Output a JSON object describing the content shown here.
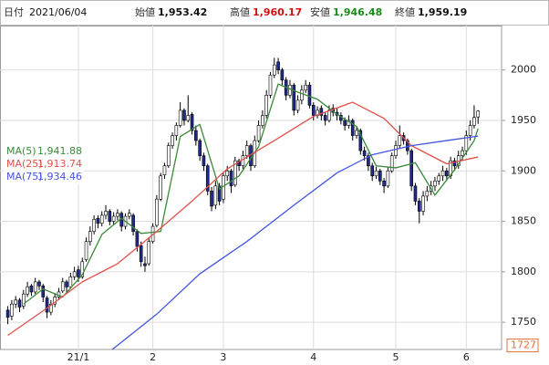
{
  "header": {
    "date_label": "日付",
    "date": "2021/06/04",
    "open_label": "始値",
    "open": "1,953.42",
    "high_label": "高値",
    "high": "1,960.17",
    "low_label": "安値",
    "low": "1,946.48",
    "close_label": "終値",
    "close": "1,959.19"
  },
  "chart_data": {
    "type": "candlestick",
    "up_color": "#ffffff",
    "down_color": "#1f2a8c",
    "outline_color": "#000000",
    "xlim": [
      -2,
      126
    ],
    "ylim": [
      1723,
      2044
    ],
    "yticks": [
      1750,
      1800,
      1850,
      1900,
      1950,
      2000
    ],
    "axis_min_label": 1727,
    "grid": true,
    "xticks": [
      {
        "value": 18,
        "label": "21/1"
      },
      {
        "value": 37,
        "label": "2"
      },
      {
        "value": 55,
        "label": "3"
      },
      {
        "value": 78,
        "label": "4"
      },
      {
        "value": 99,
        "label": "5"
      },
      {
        "value": 117,
        "label": "6"
      }
    ],
    "candles": [
      [
        1762,
        1766,
        1748,
        1755
      ],
      [
        1756,
        1772,
        1752,
        1768
      ],
      [
        1768,
        1776,
        1764,
        1772
      ],
      [
        1772,
        1774,
        1760,
        1765
      ],
      [
        1766,
        1782,
        1763,
        1778
      ],
      [
        1778,
        1790,
        1775,
        1785
      ],
      [
        1786,
        1788,
        1776,
        1780
      ],
      [
        1780,
        1794,
        1778,
        1790
      ],
      [
        1790,
        1792,
        1782,
        1786
      ],
      [
        1786,
        1788,
        1770,
        1775
      ],
      [
        1774,
        1776,
        1754,
        1760
      ],
      [
        1760,
        1772,
        1757,
        1768
      ],
      [
        1768,
        1779,
        1765,
        1775
      ],
      [
        1775,
        1784,
        1772,
        1780
      ],
      [
        1781,
        1794,
        1779,
        1790
      ],
      [
        1790,
        1792,
        1780,
        1785
      ],
      [
        1785,
        1799,
        1783,
        1795
      ],
      [
        1795,
        1805,
        1792,
        1800
      ],
      [
        1802,
        1806,
        1790,
        1795
      ],
      [
        1795,
        1814,
        1793,
        1810
      ],
      [
        1812,
        1834,
        1810,
        1830
      ],
      [
        1830,
        1845,
        1826,
        1840
      ],
      [
        1840,
        1856,
        1837,
        1852
      ],
      [
        1853,
        1856,
        1843,
        1848
      ],
      [
        1848,
        1860,
        1845,
        1856
      ],
      [
        1856,
        1866,
        1852,
        1860
      ],
      [
        1860,
        1862,
        1846,
        1850
      ],
      [
        1850,
        1859,
        1847,
        1855
      ],
      [
        1855,
        1862,
        1851,
        1858
      ],
      [
        1858,
        1860,
        1840,
        1845
      ],
      [
        1845,
        1858,
        1842,
        1855
      ],
      [
        1855,
        1862,
        1852,
        1858
      ],
      [
        1856,
        1858,
        1836,
        1840
      ],
      [
        1840,
        1842,
        1820,
        1825
      ],
      [
        1826,
        1830,
        1805,
        1810
      ],
      [
        1808,
        1815,
        1800,
        1806
      ],
      [
        1808,
        1834,
        1806,
        1830
      ],
      [
        1830,
        1848,
        1828,
        1845
      ],
      [
        1846,
        1876,
        1844,
        1872
      ],
      [
        1872,
        1898,
        1870,
        1895
      ],
      [
        1896,
        1908,
        1892,
        1905
      ],
      [
        1905,
        1928,
        1903,
        1925
      ],
      [
        1925,
        1938,
        1922,
        1935
      ],
      [
        1935,
        1948,
        1930,
        1945
      ],
      [
        1945,
        1968,
        1943,
        1960
      ],
      [
        1960,
        1962,
        1945,
        1950
      ],
      [
        1950,
        1975,
        1948,
        1955
      ],
      [
        1956,
        1958,
        1936,
        1940
      ],
      [
        1940,
        1945,
        1925,
        1930
      ],
      [
        1930,
        1932,
        1910,
        1915
      ],
      [
        1915,
        1918,
        1900,
        1905
      ],
      [
        1905,
        1907,
        1876,
        1880
      ],
      [
        1880,
        1884,
        1860,
        1865
      ],
      [
        1866,
        1890,
        1862,
        1885
      ],
      [
        1885,
        1888,
        1866,
        1870
      ],
      [
        1872,
        1898,
        1868,
        1895
      ],
      [
        1895,
        1905,
        1890,
        1900
      ],
      [
        1900,
        1902,
        1878,
        1885
      ],
      [
        1886,
        1914,
        1884,
        1910
      ],
      [
        1910,
        1912,
        1900,
        1905
      ],
      [
        1905,
        1920,
        1902,
        1915
      ],
      [
        1915,
        1930,
        1912,
        1925
      ],
      [
        1925,
        1927,
        1900,
        1905
      ],
      [
        1905,
        1935,
        1903,
        1930
      ],
      [
        1930,
        1950,
        1928,
        1945
      ],
      [
        1945,
        1960,
        1942,
        1955
      ],
      [
        1955,
        1980,
        1952,
        1975
      ],
      [
        1975,
        1998,
        1972,
        1995
      ],
      [
        1995,
        2012,
        1992,
        2005
      ],
      [
        2008,
        2012,
        1996,
        2000
      ],
      [
        2000,
        2002,
        1985,
        1990
      ],
      [
        1990,
        1993,
        1970,
        1975
      ],
      [
        1975,
        1990,
        1972,
        1985
      ],
      [
        1985,
        1987,
        1955,
        1960
      ],
      [
        1960,
        1975,
        1957,
        1970
      ],
      [
        1970,
        1985,
        1966,
        1980
      ],
      [
        1980,
        1990,
        1977,
        1985
      ],
      [
        1985,
        1988,
        1962,
        1965
      ],
      [
        1965,
        1968,
        1950,
        1955
      ],
      [
        1955,
        1964,
        1952,
        1960
      ],
      [
        1962,
        1965,
        1950,
        1955
      ],
      [
        1955,
        1958,
        1945,
        1950
      ],
      [
        1950,
        1965,
        1948,
        1960
      ],
      [
        1962,
        1966,
        1954,
        1958
      ],
      [
        1958,
        1962,
        1950,
        1955
      ],
      [
        1955,
        1958,
        1946,
        1950
      ],
      [
        1950,
        1953,
        1940,
        1945
      ],
      [
        1945,
        1955,
        1942,
        1950
      ],
      [
        1950,
        1952,
        1930,
        1935
      ],
      [
        1935,
        1944,
        1932,
        1940
      ],
      [
        1940,
        1942,
        1916,
        1920
      ],
      [
        1920,
        1924,
        1910,
        1915
      ],
      [
        1915,
        1918,
        1900,
        1905
      ],
      [
        1905,
        1908,
        1890,
        1895
      ],
      [
        1895,
        1904,
        1892,
        1900
      ],
      [
        1900,
        1902,
        1886,
        1890
      ],
      [
        1890,
        1893,
        1878,
        1885
      ],
      [
        1885,
        1904,
        1883,
        1900
      ],
      [
        1900,
        1918,
        1898,
        1915
      ],
      [
        1915,
        1930,
        1912,
        1925
      ],
      [
        1925,
        1945,
        1922,
        1935
      ],
      [
        1935,
        1938,
        1926,
        1930
      ],
      [
        1930,
        1932,
        1916,
        1920
      ],
      [
        1920,
        1922,
        1880,
        1885
      ],
      [
        1885,
        1888,
        1866,
        1870
      ],
      [
        1870,
        1873,
        1848,
        1860
      ],
      [
        1860,
        1880,
        1856,
        1875
      ],
      [
        1875,
        1885,
        1870,
        1880
      ],
      [
        1880,
        1890,
        1876,
        1885
      ],
      [
        1885,
        1894,
        1880,
        1890
      ],
      [
        1890,
        1898,
        1886,
        1895
      ],
      [
        1895,
        1905,
        1890,
        1900
      ],
      [
        1900,
        1903,
        1890,
        1895
      ],
      [
        1895,
        1914,
        1892,
        1910
      ],
      [
        1910,
        1913,
        1900,
        1905
      ],
      [
        1905,
        1920,
        1902,
        1915
      ],
      [
        1915,
        1924,
        1910,
        1920
      ],
      [
        1920,
        1940,
        1916,
        1935
      ],
      [
        1935,
        1950,
        1930,
        1945
      ],
      [
        1945,
        1965,
        1942,
        1953
      ],
      [
        1953.42,
        1960.17,
        1946.48,
        1959.19
      ]
    ],
    "series": [
      {
        "name": "MA(5)",
        "value_label": "1,941.88",
        "color": "#3a8a3a",
        "x": [
          4,
          9,
          14,
          19,
          24,
          29,
          34,
          39,
          44,
          49,
          54,
          59,
          64,
          69,
          74,
          79,
          84,
          89,
          94,
          99,
          104,
          109,
          114,
          119,
          120
        ],
        "values": [
          1768,
          1783,
          1775,
          1797,
          1837,
          1853,
          1838,
          1840,
          1934,
          1946,
          1882,
          1895,
          1924,
          1986,
          1978,
          1971,
          1956,
          1944,
          1905,
          1903,
          1908,
          1876,
          1901,
          1930,
          1941.88
        ]
      },
      {
        "name": "MA(25)",
        "value_label": "1,913.74",
        "color": "#e0504a",
        "x": [
          0,
          10,
          19,
          28,
          38,
          47,
          56,
          68,
          78,
          88,
          96,
          103,
          112,
          120
        ],
        "values": [
          1737,
          1764,
          1790,
          1808,
          1840,
          1870,
          1902,
          1930,
          1954,
          1968,
          1952,
          1925,
          1907,
          1913.74
        ]
      },
      {
        "name": "MA(75)",
        "value_label": "1,934.46",
        "color": "#4455e0",
        "x": [
          26,
          38,
          49,
          61,
          73,
          84,
          93,
          103,
          112,
          120
        ],
        "values": [
          1721,
          1758,
          1798,
          1830,
          1866,
          1898,
          1916,
          1925,
          1930,
          1934.46
        ]
      }
    ]
  }
}
